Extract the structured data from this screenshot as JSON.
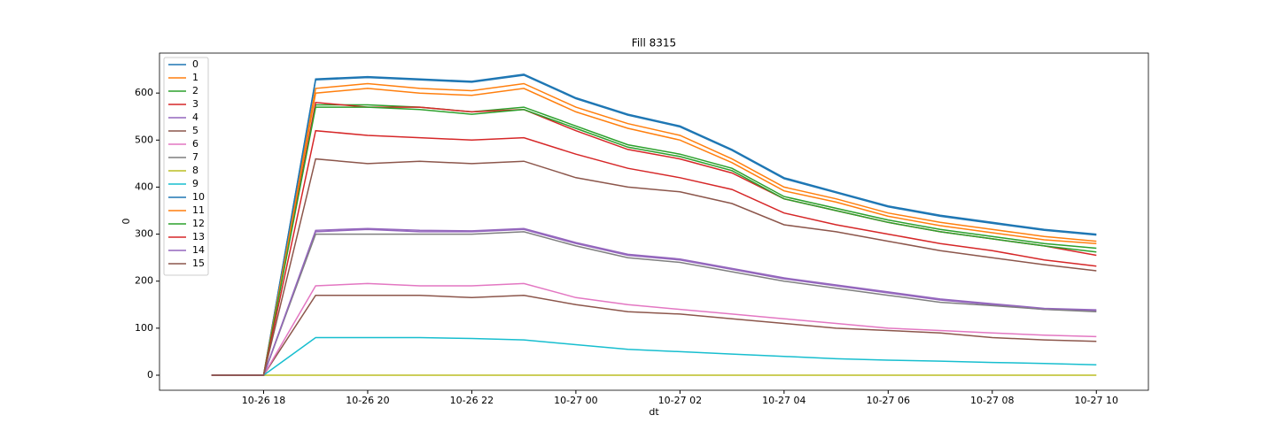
{
  "chart_data": {
    "type": "line",
    "title": "Fill 8315",
    "x_label": "dt",
    "y_label": "0",
    "x": [
      "10-26 17",
      "10-26 18",
      "10-26 19",
      "10-26 20",
      "10-26 21",
      "10-26 22",
      "10-26 23",
      "10-27 00",
      "10-27 01",
      "10-27 02",
      "10-27 03",
      "10-27 04",
      "10-27 05",
      "10-27 06",
      "10-27 07",
      "10-27 08",
      "10-27 09",
      "10-27 10"
    ],
    "xlim": [
      "10-26 16",
      "10-27 11"
    ],
    "xticks": [
      "10-26 18",
      "10-26 20",
      "10-26 22",
      "10-27 00",
      "10-27 02",
      "10-27 04",
      "10-27 06",
      "10-27 08",
      "10-27 10"
    ],
    "ylim": [
      -32,
      685
    ],
    "yticks": [
      0,
      100,
      200,
      300,
      400,
      500,
      600
    ],
    "legend": "upper left",
    "grid": false,
    "series": [
      {
        "name": "0",
        "color": "#1f77b4",
        "values": [
          0,
          0,
          630,
          635,
          630,
          625,
          640,
          590,
          555,
          530,
          480,
          420,
          390,
          360,
          340,
          325,
          310,
          300
        ]
      },
      {
        "name": "1",
        "color": "#ff7f0e",
        "values": [
          0,
          0,
          610,
          620,
          610,
          605,
          620,
          570,
          535,
          510,
          460,
          400,
          375,
          345,
          325,
          310,
          295,
          285
        ]
      },
      {
        "name": "2",
        "color": "#2ca02c",
        "values": [
          0,
          0,
          575,
          575,
          570,
          560,
          570,
          530,
          490,
          470,
          440,
          380,
          355,
          330,
          310,
          295,
          280,
          270
        ]
      },
      {
        "name": "3",
        "color": "#d62728",
        "values": [
          0,
          0,
          580,
          570,
          570,
          560,
          565,
          520,
          480,
          460,
          430,
          375,
          350,
          325,
          305,
          290,
          275,
          255
        ]
      },
      {
        "name": "4",
        "color": "#9467bd",
        "values": [
          0,
          0,
          305,
          310,
          305,
          305,
          310,
          280,
          255,
          245,
          225,
          205,
          190,
          175,
          160,
          150,
          140,
          137
        ]
      },
      {
        "name": "5",
        "color": "#8c564b",
        "values": [
          0,
          0,
          170,
          170,
          170,
          165,
          170,
          150,
          135,
          130,
          120,
          110,
          100,
          95,
          90,
          80,
          75,
          72
        ]
      },
      {
        "name": "6",
        "color": "#e377c2",
        "values": [
          0,
          0,
          190,
          195,
          190,
          190,
          195,
          165,
          150,
          140,
          130,
          120,
          110,
          100,
          95,
          90,
          85,
          82
        ]
      },
      {
        "name": "7",
        "color": "#7f7f7f",
        "values": [
          0,
          0,
          300,
          300,
          300,
          300,
          305,
          275,
          250,
          240,
          220,
          200,
          185,
          170,
          155,
          148,
          140,
          135
        ]
      },
      {
        "name": "8",
        "color": "#bcbd22",
        "values": [
          0,
          0,
          0,
          0,
          0,
          0,
          0,
          0,
          0,
          0,
          0,
          0,
          0,
          0,
          0,
          0,
          0,
          0
        ]
      },
      {
        "name": "9",
        "color": "#17becf",
        "values": [
          0,
          0,
          80,
          80,
          80,
          78,
          75,
          65,
          55,
          50,
          45,
          40,
          35,
          32,
          30,
          27,
          25,
          22
        ]
      },
      {
        "name": "10",
        "color": "#1f77b4",
        "values": [
          0,
          0,
          628,
          633,
          628,
          623,
          638,
          588,
          553,
          528,
          478,
          418,
          388,
          358,
          338,
          323,
          308,
          298
        ]
      },
      {
        "name": "11",
        "color": "#ff7f0e",
        "values": [
          0,
          0,
          600,
          610,
          600,
          595,
          610,
          560,
          525,
          500,
          452,
          392,
          368,
          338,
          318,
          303,
          288,
          280
        ]
      },
      {
        "name": "12",
        "color": "#2ca02c",
        "values": [
          0,
          0,
          570,
          570,
          565,
          555,
          565,
          525,
          485,
          465,
          435,
          375,
          350,
          325,
          305,
          290,
          275,
          262
        ]
      },
      {
        "name": "13",
        "color": "#d62728",
        "values": [
          0,
          0,
          520,
          510,
          505,
          500,
          505,
          470,
          440,
          420,
          395,
          345,
          320,
          300,
          280,
          265,
          245,
          232
        ]
      },
      {
        "name": "14",
        "color": "#9467bd",
        "values": [
          0,
          0,
          308,
          312,
          308,
          307,
          312,
          282,
          257,
          247,
          227,
          207,
          192,
          177,
          162,
          152,
          142,
          139
        ]
      },
      {
        "name": "15",
        "color": "#8c564b",
        "values": [
          0,
          0,
          460,
          450,
          455,
          450,
          455,
          420,
          400,
          390,
          365,
          320,
          305,
          285,
          265,
          250,
          235,
          222
        ]
      }
    ]
  }
}
